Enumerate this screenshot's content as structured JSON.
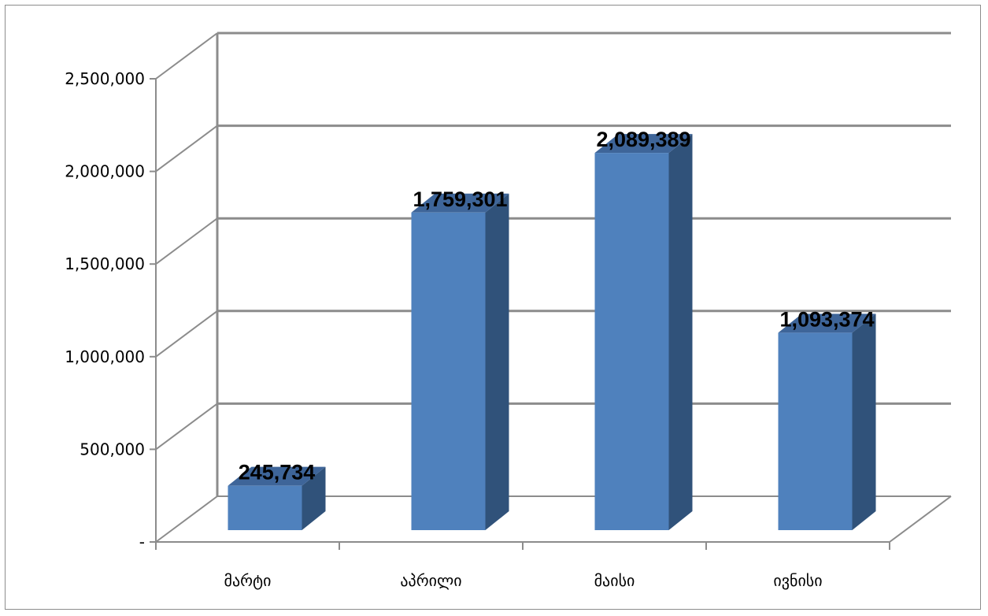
{
  "chart_data": {
    "type": "bar",
    "three_d": true,
    "categories": [
      "მარტი",
      "აპრილი",
      "მაისი",
      "ივნისი"
    ],
    "values": [
      245734,
      1759301,
      2089389,
      1093374
    ],
    "data_labels": [
      "245,734",
      "1,759,301",
      "2,089,389",
      "1,093,374"
    ],
    "y_ticks": [
      0,
      500000,
      1000000,
      1500000,
      2000000,
      2500000
    ],
    "y_tick_labels": [
      "-",
      "500,000",
      "1,000,000",
      "1,500,000",
      "2,000,000",
      "2,500,000"
    ],
    "ylim": [
      0,
      2500000
    ],
    "title": "",
    "xlabel": "",
    "ylabel": "",
    "grid": true,
    "legend": "none",
    "colors": {
      "bar_front": "#4f81bd",
      "bar_side": "#30527a",
      "bar_top": "#3e6599",
      "grid": "#8c8c8c",
      "frame": "#8c8c8c"
    }
  }
}
